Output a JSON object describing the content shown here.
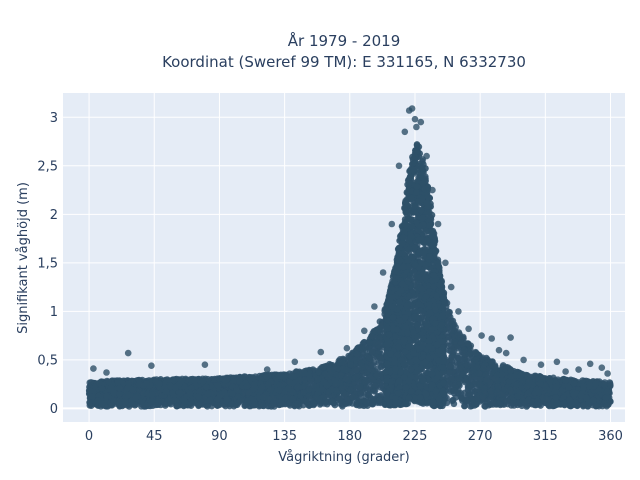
{
  "chart_data": {
    "type": "scatter",
    "title_line1": "År 1979 - 2019",
    "title_line2": "Koordinat (Sweref 99 TM): E 331165, N 6332730",
    "xlabel": "Vågriktning (grader)",
    "ylabel": "Signifikant våghöjd (m)",
    "xlim": [
      -18,
      370
    ],
    "ylim": [
      -0.14,
      3.25
    ],
    "x_ticks": [
      0,
      45,
      90,
      135,
      180,
      225,
      270,
      315,
      360
    ],
    "x_tick_labels": [
      "0",
      "45",
      "90",
      "135",
      "180",
      "225",
      "270",
      "315",
      "360"
    ],
    "y_ticks": [
      0,
      0.5,
      1,
      1.5,
      2,
      2.5,
      3
    ],
    "y_tick_labels": [
      "0",
      "0,5",
      "1",
      "1,5",
      "2",
      "2,5",
      "3"
    ],
    "grid": true,
    "marker_color": "#2e5068",
    "plot_background": "#e5ecf6",
    "envelope": {
      "direction": [
        0,
        20,
        45,
        90,
        135,
        160,
        180,
        195,
        205,
        212,
        218,
        222,
        225,
        228,
        232,
        236,
        240,
        245,
        250,
        260,
        270,
        285,
        300,
        330,
        360
      ],
      "upper_height": [
        0.27,
        0.29,
        0.3,
        0.31,
        0.36,
        0.42,
        0.55,
        0.75,
        1.05,
        1.5,
        2.1,
        2.55,
        2.75,
        2.7,
        2.5,
        2.1,
        1.6,
        1.2,
        0.95,
        0.7,
        0.55,
        0.45,
        0.35,
        0.3,
        0.27
      ],
      "lower_height": [
        0.02,
        0.02,
        0.02,
        0.02,
        0.02,
        0.02,
        0.02,
        0.02,
        0.02,
        0.03,
        0.04,
        0.05,
        0.05,
        0.05,
        0.04,
        0.03,
        0.02,
        0.02,
        0.02,
        0.02,
        0.02,
        0.02,
        0.02,
        0.02,
        0.02
      ]
    },
    "outliers": [
      {
        "x": 27,
        "y": 0.57
      },
      {
        "x": 3,
        "y": 0.41
      },
      {
        "x": 12,
        "y": 0.37
      },
      {
        "x": 43,
        "y": 0.44
      },
      {
        "x": 80,
        "y": 0.45
      },
      {
        "x": 123,
        "y": 0.4
      },
      {
        "x": 142,
        "y": 0.48
      },
      {
        "x": 160,
        "y": 0.58
      },
      {
        "x": 178,
        "y": 0.62
      },
      {
        "x": 190,
        "y": 0.8
      },
      {
        "x": 197,
        "y": 1.05
      },
      {
        "x": 203,
        "y": 1.4
      },
      {
        "x": 209,
        "y": 1.9
      },
      {
        "x": 214,
        "y": 2.5
      },
      {
        "x": 218,
        "y": 2.85
      },
      {
        "x": 221,
        "y": 3.07
      },
      {
        "x": 223,
        "y": 3.09
      },
      {
        "x": 225,
        "y": 2.98
      },
      {
        "x": 226,
        "y": 2.9
      },
      {
        "x": 229,
        "y": 2.95
      },
      {
        "x": 233,
        "y": 2.6
      },
      {
        "x": 237,
        "y": 2.25
      },
      {
        "x": 241,
        "y": 1.9
      },
      {
        "x": 246,
        "y": 1.5
      },
      {
        "x": 250,
        "y": 1.25
      },
      {
        "x": 255,
        "y": 1.0
      },
      {
        "x": 262,
        "y": 0.82
      },
      {
        "x": 271,
        "y": 0.75
      },
      {
        "x": 278,
        "y": 0.72
      },
      {
        "x": 283,
        "y": 0.6
      },
      {
        "x": 288,
        "y": 0.57
      },
      {
        "x": 291,
        "y": 0.73
      },
      {
        "x": 300,
        "y": 0.5
      },
      {
        "x": 312,
        "y": 0.45
      },
      {
        "x": 323,
        "y": 0.48
      },
      {
        "x": 329,
        "y": 0.38
      },
      {
        "x": 338,
        "y": 0.4
      },
      {
        "x": 346,
        "y": 0.46
      },
      {
        "x": 354,
        "y": 0.42
      },
      {
        "x": 358,
        "y": 0.36
      }
    ]
  }
}
